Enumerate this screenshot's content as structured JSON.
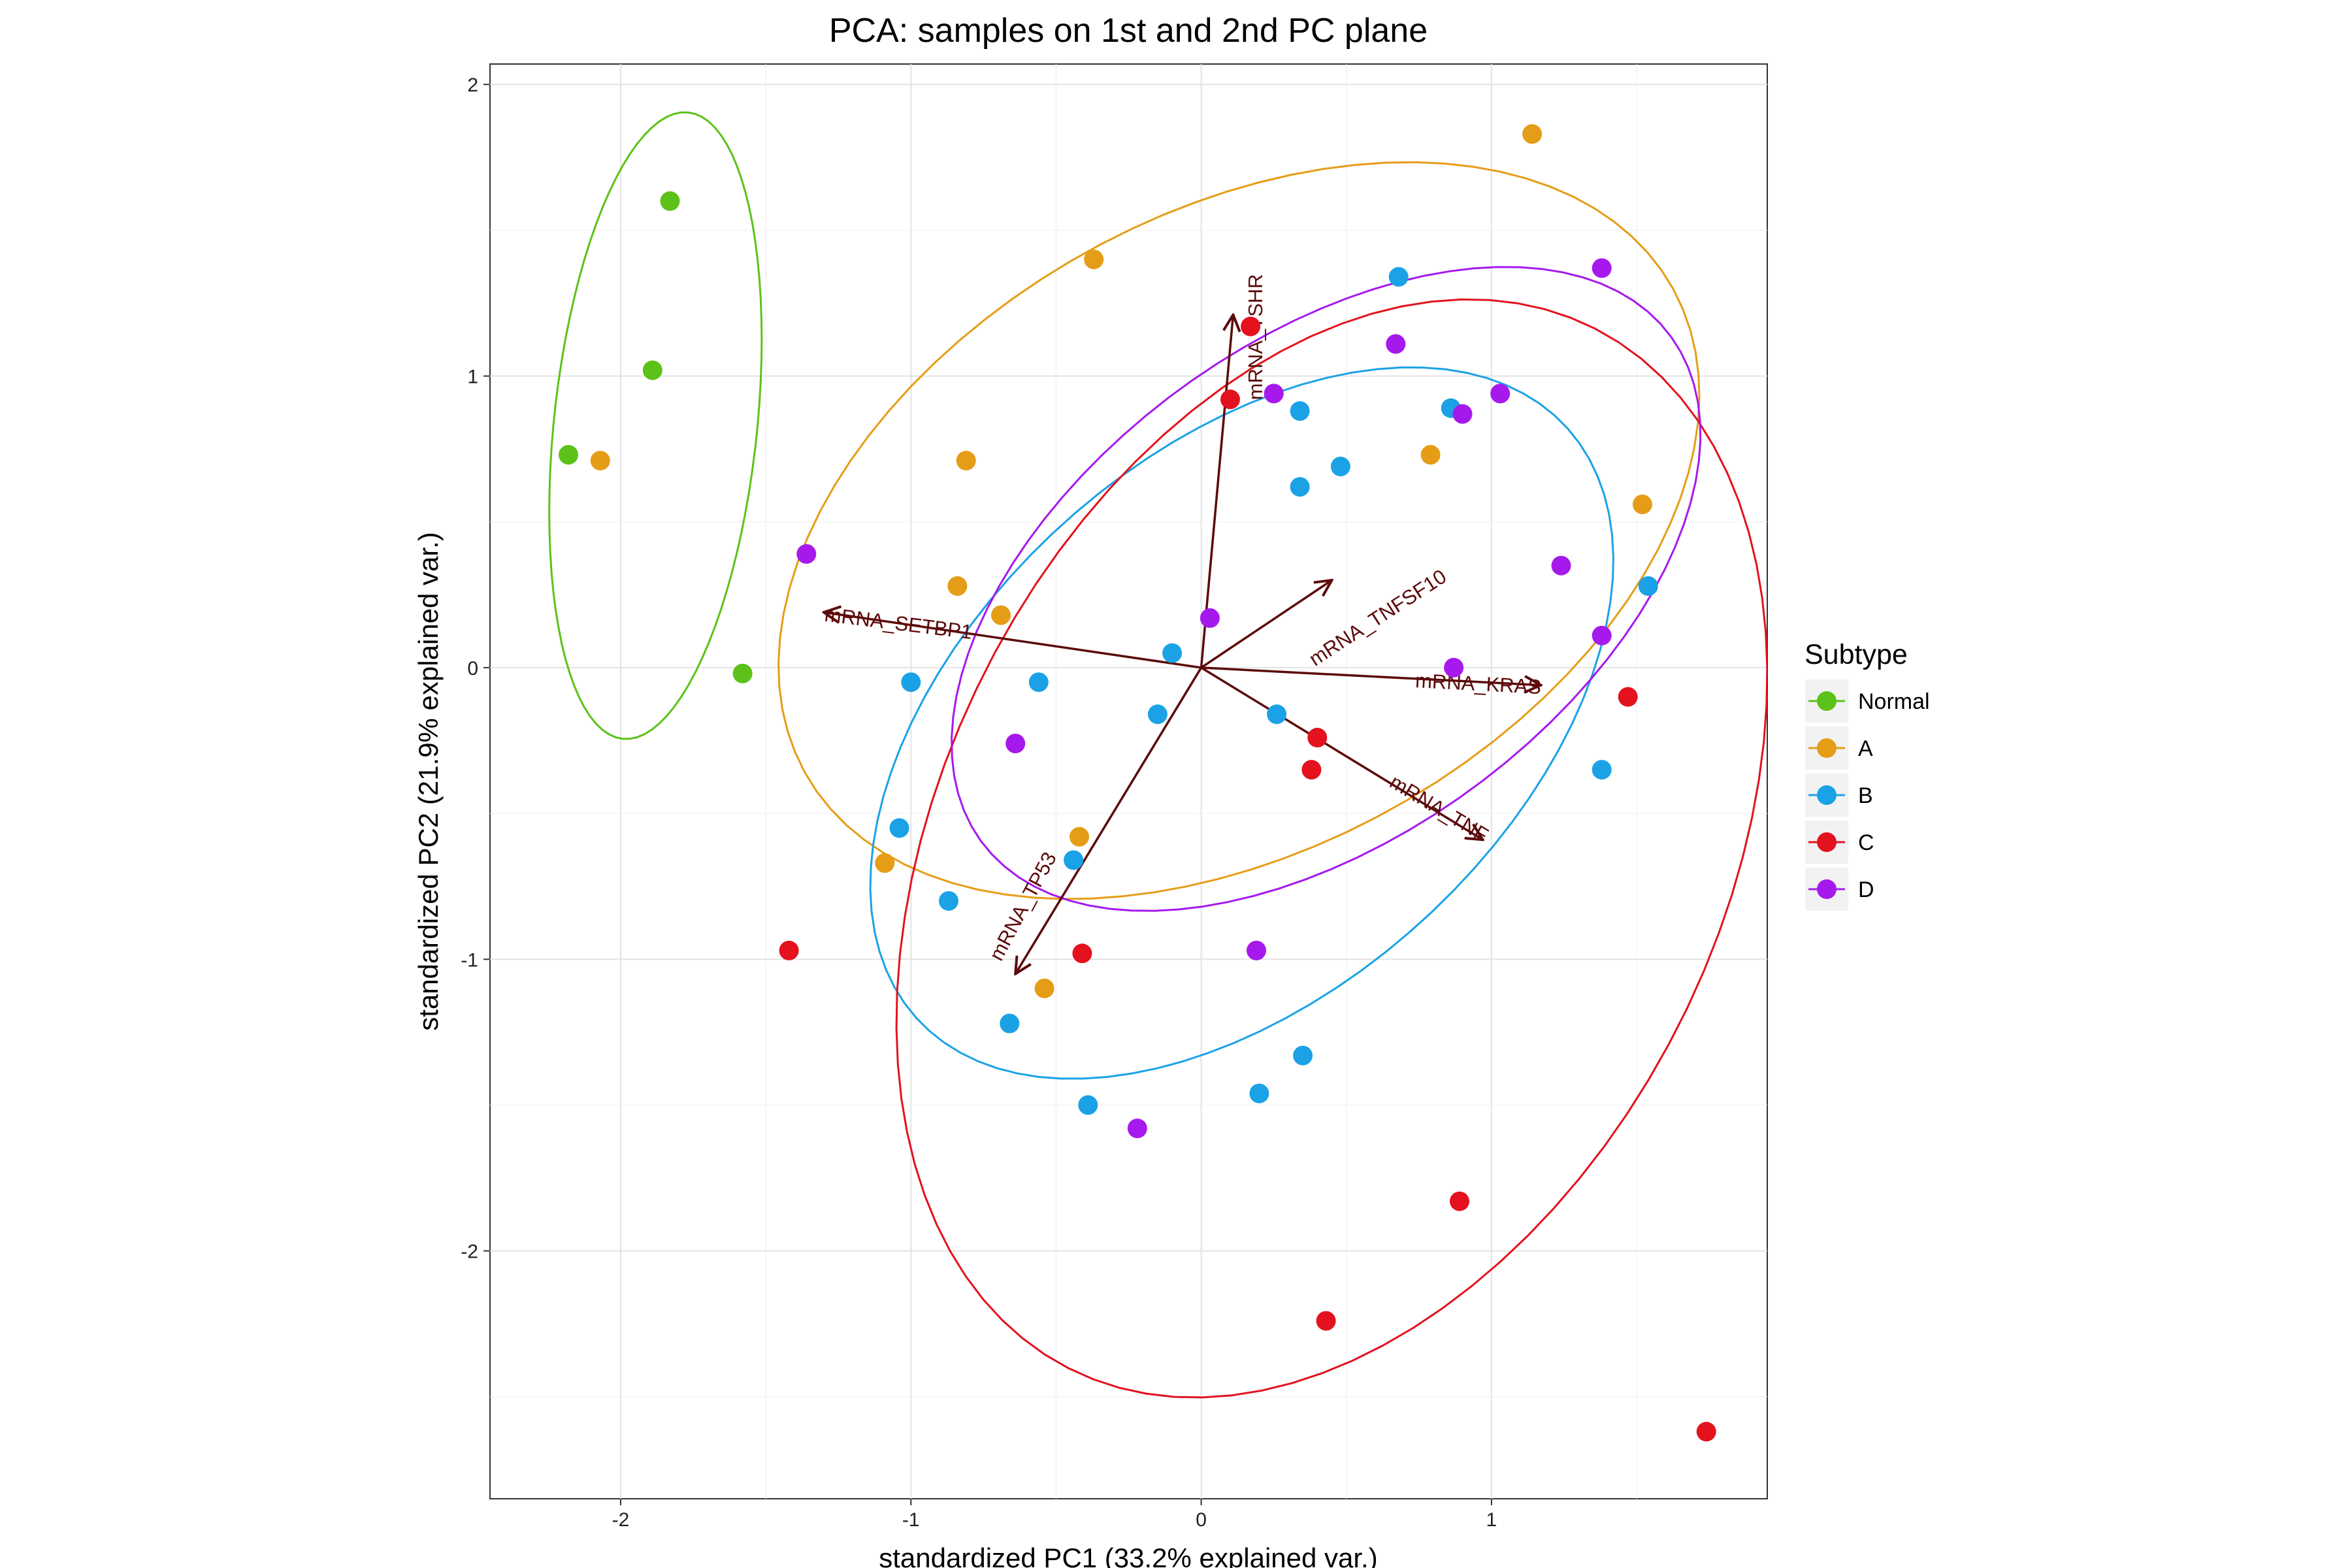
{
  "chart_data": {
    "type": "scatter",
    "title": "PCA: samples on 1st and 2nd PC plane",
    "xlabel": "standardized PC1 (33.2% explained var.)",
    "ylabel": "standardized PC2 (21.9% explained var.)",
    "xlim": [
      -2.45,
      1.95
    ],
    "ylim": [
      -2.85,
      2.07
    ],
    "x_ticks": [
      -2,
      -1,
      0,
      1
    ],
    "y_ticks": [
      2,
      1,
      0,
      -1,
      -2
    ],
    "x_tick_labels": [
      "-2",
      "-1",
      "0",
      "1"
    ],
    "y_tick_labels": [
      "2",
      "1",
      "0",
      "-1",
      "-2"
    ],
    "grid": true,
    "legend": {
      "title": "Subtype",
      "position": "right"
    },
    "series": [
      {
        "name": "Normal",
        "color": "#5cc219",
        "points": [
          [
            -1.83,
            1.6
          ],
          [
            -1.89,
            1.02
          ],
          [
            -2.18,
            0.73
          ],
          [
            -1.58,
            -0.02
          ]
        ],
        "ellipse": {
          "cx": -1.88,
          "cy": 0.83,
          "rx": 1.08,
          "ry": 0.35,
          "angle": 84
        }
      },
      {
        "name": "A",
        "color": "#e59d17",
        "points": [
          [
            1.14,
            1.83
          ],
          [
            -0.37,
            1.4
          ],
          [
            -2.07,
            0.71
          ],
          [
            -0.81,
            0.71
          ],
          [
            0.79,
            0.73
          ],
          [
            1.52,
            0.56
          ],
          [
            -0.84,
            0.28
          ],
          [
            -0.69,
            0.18
          ],
          [
            -0.42,
            -0.58
          ],
          [
            -1.09,
            -0.67
          ],
          [
            -0.54,
            -1.1
          ]
        ],
        "ellipse": {
          "cx": 0.13,
          "cy": 0.47,
          "rx": 1.71,
          "ry": 1.09,
          "angle": 29
        }
      },
      {
        "name": "B",
        "color": "#1ba2e6",
        "points": [
          [
            0.68,
            1.34
          ],
          [
            0.34,
            0.88
          ],
          [
            0.86,
            0.89
          ],
          [
            0.48,
            0.69
          ],
          [
            0.34,
            0.62
          ],
          [
            1.54,
            0.28
          ],
          [
            -0.1,
            0.05
          ],
          [
            -1.0,
            -0.05
          ],
          [
            -0.56,
            -0.05
          ],
          [
            -0.15,
            -0.16
          ],
          [
            0.26,
            -0.16
          ],
          [
            1.38,
            -0.35
          ],
          [
            -1.04,
            -0.55
          ],
          [
            -0.44,
            -0.66
          ],
          [
            -0.87,
            -0.8
          ],
          [
            -0.66,
            -1.22
          ],
          [
            0.35,
            -1.33
          ],
          [
            -0.39,
            -1.5
          ],
          [
            0.2,
            -1.46
          ]
        ],
        "ellipse": {
          "cx": 0.14,
          "cy": -0.19,
          "rx": 1.51,
          "ry": 0.92,
          "angle": 42
        }
      },
      {
        "name": "C",
        "color": "#e3121e",
        "points": [
          [
            0.17,
            1.17
          ],
          [
            0.1,
            0.92
          ],
          [
            0.4,
            -0.24
          ],
          [
            0.38,
            -0.35
          ],
          [
            1.47,
            -0.1
          ],
          [
            -1.42,
            -0.97
          ],
          [
            -0.41,
            -0.98
          ],
          [
            0.89,
            -1.83
          ],
          [
            0.43,
            -2.24
          ],
          [
            1.74,
            -2.62
          ]
        ],
        "ellipse": {
          "cx": 0.45,
          "cy": -0.62,
          "rx": 2.0,
          "ry": 1.34,
          "angle": 63
        }
      },
      {
        "name": "D",
        "color": "#a619ec",
        "points": [
          [
            1.38,
            1.37
          ],
          [
            0.67,
            1.11
          ],
          [
            0.25,
            0.94
          ],
          [
            1.03,
            0.94
          ],
          [
            0.9,
            0.87
          ],
          [
            -1.36,
            0.39
          ],
          [
            1.24,
            0.35
          ],
          [
            0.03,
            0.17
          ],
          [
            1.38,
            0.11
          ],
          [
            0.87,
            0.0
          ],
          [
            -0.64,
            -0.26
          ],
          [
            0.19,
            -0.97
          ],
          [
            -0.22,
            -1.58
          ]
        ],
        "ellipse": {
          "cx": 0.43,
          "cy": 0.27,
          "rx": 1.47,
          "ry": 0.85,
          "angle": 36
        }
      }
    ],
    "loadings": [
      {
        "label": "mRNA_TSHR",
        "x": 0.11,
        "y": 1.21,
        "label_rotation": -90,
        "label_anchor": "end",
        "label_offset": [
          0.1,
          0.14
        ]
      },
      {
        "label": "mRNA_SETBP1",
        "x": -1.3,
        "y": 0.19,
        "label_rotation": 7,
        "label_anchor": "start",
        "label_offset": [
          0.0,
          -0.03
        ]
      },
      {
        "label": "mRNA_TNFSF10",
        "x": 0.45,
        "y": 0.3,
        "label_rotation": -33,
        "label_anchor": "end",
        "label_offset": [
          0.4,
          0.0
        ]
      },
      {
        "label": "mRNA_KRAS",
        "x": 1.17,
        "y": -0.06,
        "label_rotation": 3,
        "label_anchor": "end",
        "label_offset": [
          0.0,
          -0.03
        ]
      },
      {
        "label": "mRNA_TNF",
        "x": 0.97,
        "y": -0.59,
        "label_rotation": 31,
        "label_anchor": "end",
        "label_offset": [
          0.0,
          -0.01
        ]
      },
      {
        "label": "mRNA_TP53",
        "x": -0.64,
        "y": -1.05,
        "label_rotation": -62,
        "label_anchor": "start",
        "label_offset": [
          -0.05,
          0.04
        ]
      }
    ],
    "loading_color": "#5c0a0a"
  }
}
